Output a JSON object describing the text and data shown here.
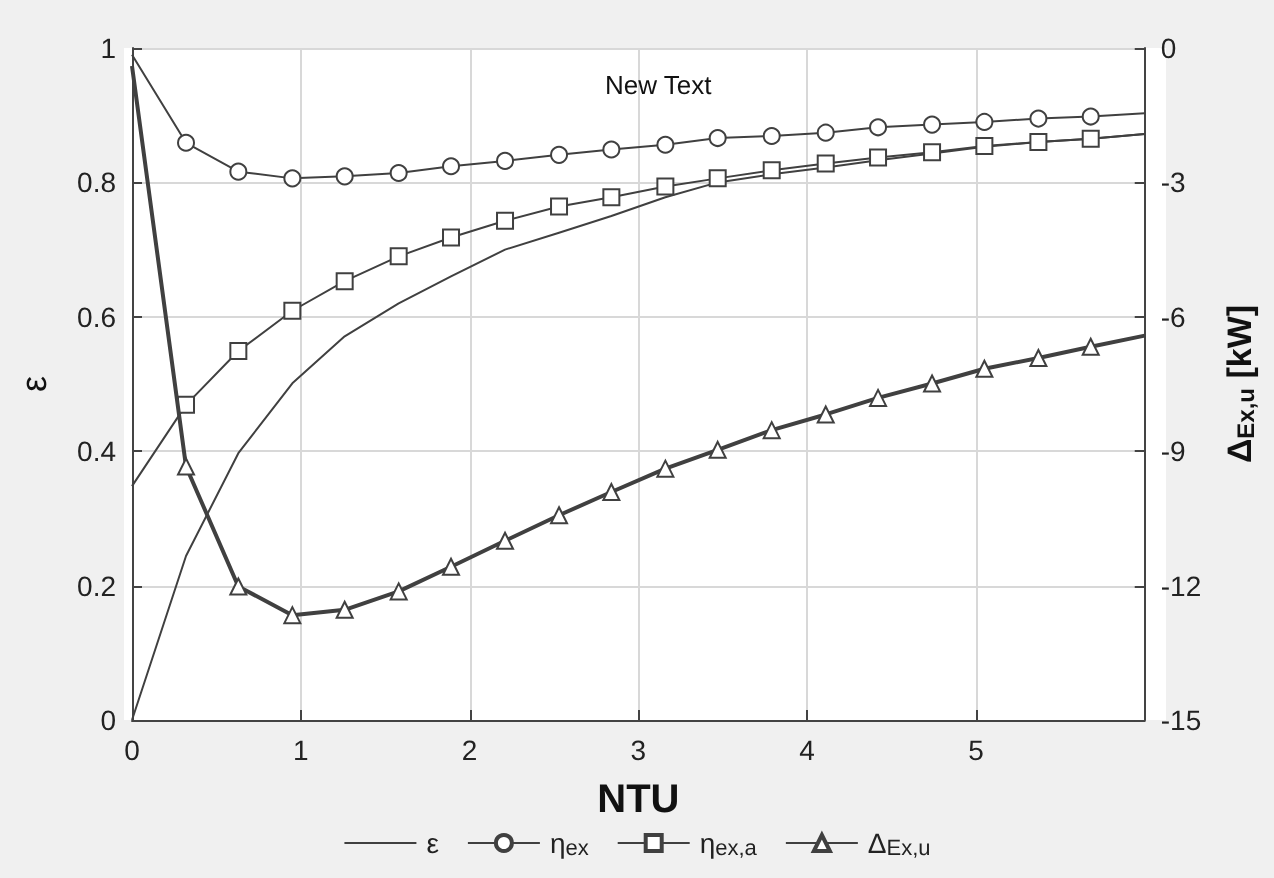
{
  "chart_data": {
    "type": "line",
    "xlabel": "NTU",
    "ylabel": "ε",
    "y2label": "Δ$_{Ex,u}$ [kW]",
    "x": [
      0,
      0.32,
      0.63,
      0.95,
      1.26,
      1.58,
      1.89,
      2.21,
      2.53,
      2.84,
      3.16,
      3.47,
      3.79,
      4.11,
      4.42,
      4.74,
      5.05,
      5.37,
      5.68,
      6
    ],
    "xlim": [
      0,
      6
    ],
    "xticks": [
      0,
      1,
      2,
      3,
      4,
      5,
      {
        "value": 6,
        "label": null
      }
    ],
    "ylim": [
      0,
      1
    ],
    "yticks": [
      0,
      0.2,
      0.4,
      0.6,
      0.8,
      1
    ],
    "y2lim": [
      -15,
      0
    ],
    "y2ticks": [
      -15,
      -12,
      -9,
      -6,
      -3,
      0
    ],
    "series": [
      {
        "name": "ε",
        "color": "#404040",
        "marker": "none",
        "values": [
          0,
          0.244,
          0.397,
          0.501,
          0.571,
          0.62,
          0.66,
          0.7,
          0.725,
          0.75,
          0.778,
          0.8,
          0.812,
          0.822,
          0.833,
          0.843,
          0.853,
          0.86,
          0.865,
          0.872
        ]
      },
      {
        "name": "η$_{ex}$",
        "color": "#404040",
        "marker": "circle",
        "values": [
          0.99,
          0.859,
          0.816,
          0.806,
          0.809,
          0.814,
          0.824,
          0.832,
          0.841,
          0.849,
          0.856,
          0.866,
          0.869,
          0.874,
          0.882,
          0.886,
          0.89,
          0.895,
          0.898,
          0.903
        ]
      },
      {
        "name": "η$_{ex,a}$",
        "color": "#404040",
        "marker": "square",
        "values": [
          0.348,
          0.469,
          0.549,
          0.609,
          0.653,
          0.69,
          0.718,
          0.743,
          0.764,
          0.778,
          0.794,
          0.806,
          0.818,
          0.828,
          0.837,
          0.845,
          0.854,
          0.86,
          0.865,
          0.872
        ]
      },
      {
        "name": "Δ$_{Ex,u}$",
        "color": "#404040",
        "marker": "triangle",
        "axis": "y2",
        "values": [
          -0.4,
          -9.34,
          -12.02,
          -12.66,
          -12.54,
          -12.13,
          -11.58,
          -11.0,
          -10.43,
          -9.91,
          -9.39,
          -8.97,
          -8.53,
          -8.18,
          -7.81,
          -7.49,
          -7.16,
          -6.92,
          -6.67,
          -6.42
        ]
      }
    ],
    "annotations": [
      "New Text"
    ],
    "grid": true,
    "legend": "bottom",
    "line_style": "solid"
  }
}
